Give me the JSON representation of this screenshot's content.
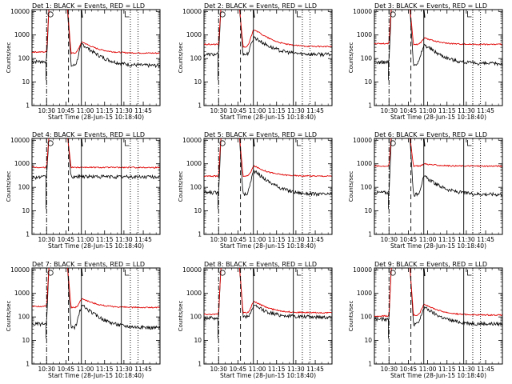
{
  "chart_data": [
    {
      "type": "line",
      "title": "Det 1: BLACK = Events, RED = LLD",
      "xlabel": "Start Time (28-Jun-15 10:18:40)",
      "ylabel": "Counts/sec",
      "bg_black": 50,
      "bg_red": 170,
      "pre_black": 75,
      "pre_red": 190,
      "flare_peak": 400,
      "flare_red": 500,
      "drop_at": 10.5
    },
    {
      "type": "line",
      "title": "Det 2: BLACK = Events, RED = LLD",
      "xlabel": "Start Time (28-Jun-15 10:18:40)",
      "ylabel": "Counts/sec",
      "bg_black": 150,
      "bg_red": 320,
      "pre_black": 150,
      "pre_red": 400,
      "flare_peak": 800,
      "flare_red": 1700,
      "drop_at": 10.5
    },
    {
      "type": "line",
      "title": "Det 3: BLACK = Events, RED = LLD",
      "xlabel": "Start Time (28-Jun-15 10:18:40)",
      "ylabel": "Counts/sec",
      "bg_black": 60,
      "bg_red": 400,
      "pre_black": 70,
      "pre_red": 430,
      "flare_peak": 380,
      "flare_red": 750,
      "drop_at": 10.5
    },
    {
      "type": "line",
      "title": "Det 4: BLACK = Events, RED = LLD",
      "xlabel": "Start Time (28-Jun-15 10:18:40)",
      "ylabel": "Counts/sec",
      "bg_black": 280,
      "bg_red": 700,
      "pre_black": 270,
      "pre_red": 700,
      "flare_peak": 300,
      "flare_red": 720,
      "drop_at": 10.5
    },
    {
      "type": "line",
      "title": "Det 5: BLACK = Events, RED = LLD",
      "xlabel": "Start Time (28-Jun-15 10:18:40)",
      "ylabel": "Counts/sec",
      "bg_black": 50,
      "bg_red": 300,
      "pre_black": 60,
      "pre_red": 300,
      "flare_peak": 480,
      "flare_red": 800,
      "drop_at": 10.5
    },
    {
      "type": "line",
      "title": "Det 6: BLACK = Events, RED = LLD",
      "xlabel": "Start Time (28-Jun-15 10:18:40)",
      "ylabel": "Counts/sec",
      "bg_black": 50,
      "bg_red": 800,
      "pre_black": 60,
      "pre_red": 800,
      "flare_peak": 280,
      "flare_red": 1000,
      "drop_at": 10.5
    },
    {
      "type": "line",
      "title": "Det 7: BLACK = Events, RED = LLD",
      "xlabel": "Start Time (28-Jun-15 10:18:40)",
      "ylabel": "Counts/sec",
      "bg_black": 35,
      "bg_red": 250,
      "pre_black": 50,
      "pre_red": 280,
      "flare_peak": 300,
      "flare_red": 600,
      "drop_at": 10.5
    },
    {
      "type": "line",
      "title": "Det 8: BLACK = Events, RED = LLD",
      "xlabel": "Start Time (28-Jun-15 10:18:40)",
      "ylabel": "Counts/sec",
      "bg_black": 100,
      "bg_red": 150,
      "pre_black": 90,
      "pre_red": 130,
      "flare_peak": 300,
      "flare_red": 450,
      "drop_at": 10.5
    },
    {
      "type": "line",
      "title": "Det 9: BLACK = Events, RED = LLD",
      "xlabel": "Start Time (28-Jun-15 10:18:40)",
      "ylabel": "Counts/sec",
      "bg_black": 50,
      "bg_red": 120,
      "pre_black": 80,
      "pre_red": 110,
      "flare_peak": 250,
      "flare_red": 350,
      "drop_at": 10.5
    }
  ],
  "axes": {
    "x_tick_labels": [
      "10:30",
      "10:45",
      "11:00",
      "11:15",
      "11:30",
      "11:45"
    ],
    "x_tick_minutes": [
      30,
      45,
      60,
      75,
      90,
      105
    ],
    "x_range_minutes": [
      18.67,
      118
    ],
    "y_tick_labels": [
      "1",
      "10",
      "100",
      "1000",
      "10000"
    ],
    "y_range": [
      1,
      12000
    ],
    "markers": {
      "dashdot_minutes": [
        30
      ],
      "dashed_minutes": [
        47
      ],
      "solid_minutes": [
        57,
        88
      ],
      "dotted_minutes": [
        95,
        101
      ]
    },
    "marker_labels": {
      "circle": "C",
      "box": "L"
    }
  },
  "colors": {
    "events": "#000000",
    "lld": "#e00000"
  }
}
